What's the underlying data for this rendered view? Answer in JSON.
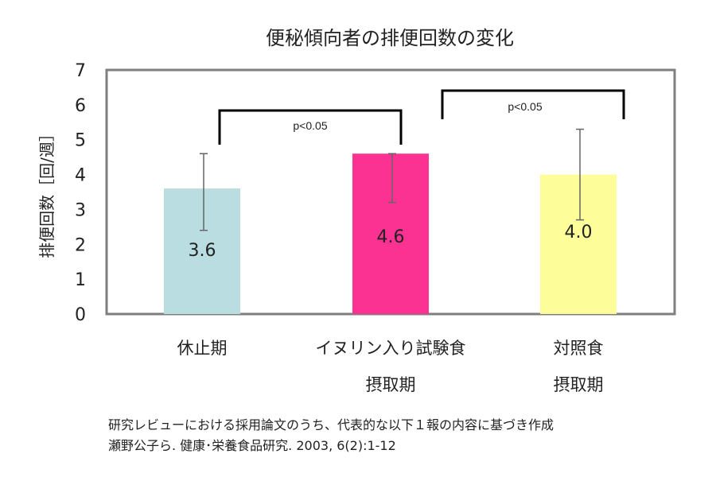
{
  "chart_data": {
    "type": "bar",
    "title": "便秘傾向者の排便回数の変化",
    "ylabel": "排便回数［回/週］",
    "ylim": [
      0,
      7
    ],
    "yticks": [
      0,
      1,
      2,
      3,
      4,
      5,
      6,
      7
    ],
    "categories": [
      [
        "休止期"
      ],
      [
        "イヌリン入り試験食",
        "摂取期"
      ],
      [
        "対照食",
        "摂取期"
      ]
    ],
    "values": [
      3.6,
      4.6,
      4.0
    ],
    "value_labels": [
      "3.6",
      "4.6",
      "4.0"
    ],
    "error_low": [
      2.4,
      3.2,
      2.7
    ],
    "error_high": [
      4.6,
      4.6,
      5.3
    ],
    "colors": [
      "#b9dde0",
      "#fc3292",
      "#fdfd99"
    ],
    "significance": [
      {
        "from": 0,
        "to": 1,
        "label": "p<0.05",
        "level": 5.8
      },
      {
        "from": 1,
        "to": 2,
        "label": "p<0.05",
        "level": 6.4
      }
    ],
    "grid": false
  },
  "source_note": {
    "line1": "研究レビューにおける採用論文のうち、代表的な以下１報の内容に基づき作成",
    "line2": "瀬野公子ら. 健康･栄養食品研究. 2003, 6(2):1-12"
  }
}
